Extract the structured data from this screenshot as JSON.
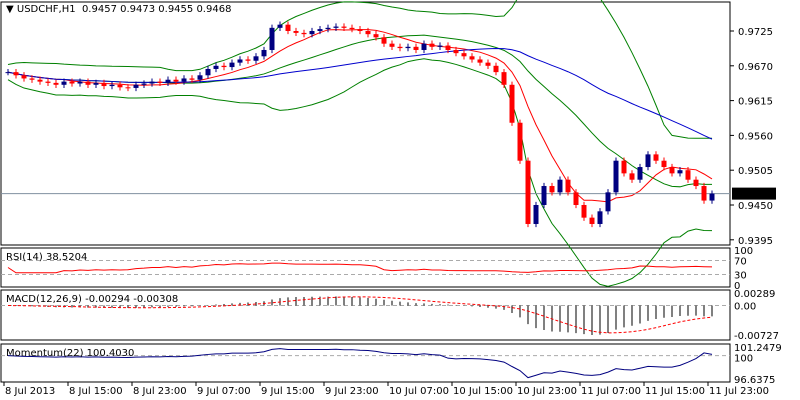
{
  "header": {
    "symbol_label": "USDCHF,H1",
    "ohlc": "0.9457 0.9473 0.9455 0.9468"
  },
  "chart_data": {
    "type": "candlestick",
    "symbol": "USDCHF",
    "timeframe": "H1",
    "price_ticks": [
      "0.9725",
      "0.9670",
      "0.9615",
      "0.9560",
      "0.9505",
      "0.9450",
      "0.9395"
    ],
    "current_price": "0.9468",
    "ylim": [
      0.939,
      0.977
    ],
    "x_ticks": [
      "8 Jul 2013",
      "8 Jul 15:00",
      "8 Jul 23:00",
      "9 Jul 07:00",
      "9 Jul 15:00",
      "9 Jul 23:00",
      "10 Jul 07:00",
      "10 Jul 15:00",
      "10 Jul 23:00",
      "11 Jul 07:00",
      "11 Jul 15:00",
      "11 Jul 23:00"
    ],
    "closes": [
      0.966,
      0.9655,
      0.965,
      0.9648,
      0.9645,
      0.9643,
      0.964,
      0.9645,
      0.9642,
      0.9645,
      0.964,
      0.9643,
      0.9638,
      0.964,
      0.9636,
      0.9635,
      0.964,
      0.9642,
      0.9645,
      0.9643,
      0.9648,
      0.9645,
      0.965,
      0.9648,
      0.9655,
      0.9665,
      0.967,
      0.9668,
      0.9675,
      0.968,
      0.9678,
      0.9685,
      0.9695,
      0.973,
      0.9735,
      0.9725,
      0.9722,
      0.972,
      0.9725,
      0.9728,
      0.973,
      0.9732,
      0.973,
      0.9728,
      0.9725,
      0.972,
      0.9715,
      0.9705,
      0.97,
      0.9698,
      0.97,
      0.9695,
      0.9705,
      0.97,
      0.9702,
      0.9695,
      0.969,
      0.9685,
      0.968,
      0.9675,
      0.967,
      0.966,
      0.964,
      0.958,
      0.952,
      0.942,
      0.945,
      0.948,
      0.947,
      0.949,
      0.947,
      0.945,
      0.943,
      0.942,
      0.944,
      0.947,
      0.952,
      0.95,
      0.949,
      0.951,
      0.953,
      0.952,
      0.951,
      0.95,
      0.9505,
      0.949,
      0.948,
      0.9457,
      0.9468
    ],
    "colors": {
      "bull": "#000080",
      "bear": "#ff0000",
      "bands": "#008000",
      "ma_fast": "#ff0000",
      "ma_slow": "#0000cd"
    },
    "indicators": {
      "rsi": {
        "label": "RSI(14) 38.5204",
        "ticks": [
          "100",
          "70",
          "30",
          "0"
        ]
      },
      "macd": {
        "label": "MACD(12,26,9) -0.00294 -0.00308",
        "ticks": [
          "0.00289",
          "0.00",
          "-0.00727"
        ]
      },
      "momentum": {
        "label": "Momentum(22) 100.4030",
        "ticks": [
          "101.2479",
          "100",
          "96.6375"
        ]
      }
    }
  }
}
